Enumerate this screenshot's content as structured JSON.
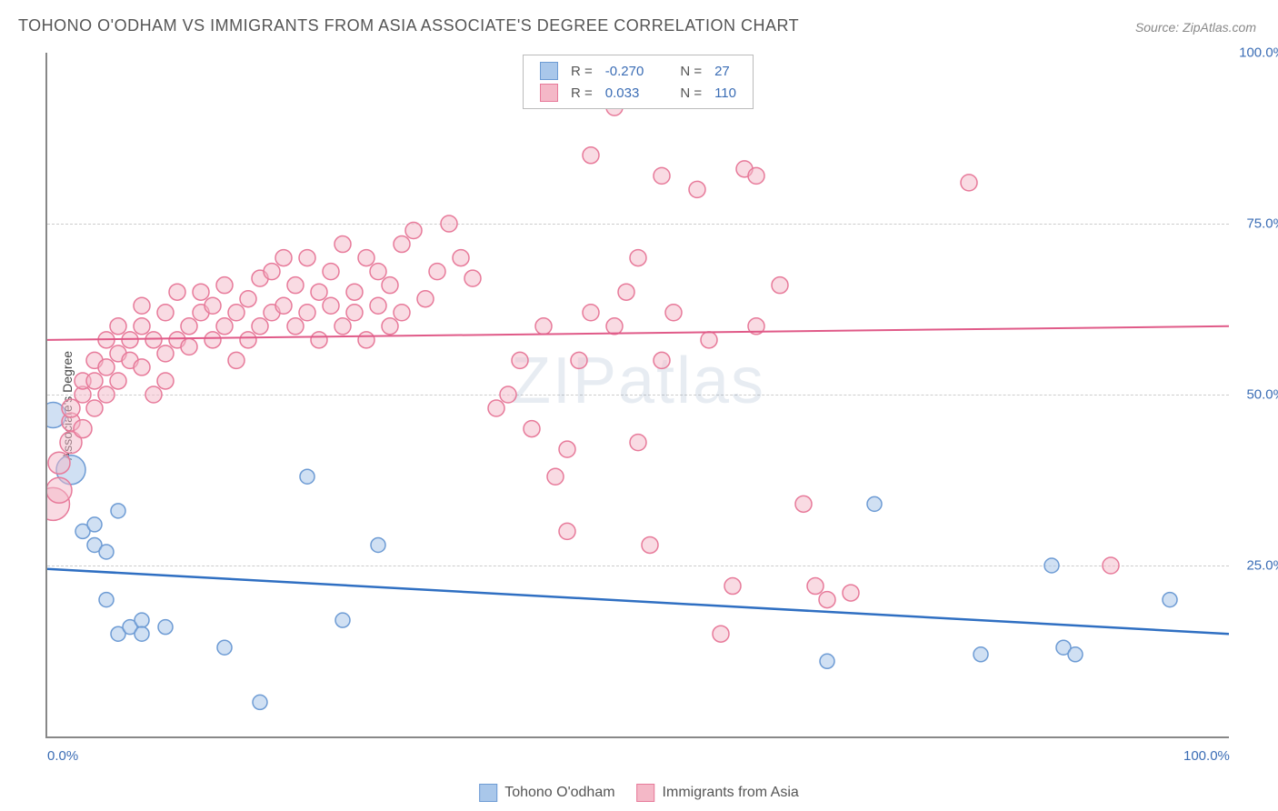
{
  "title": "TOHONO O'ODHAM VS IMMIGRANTS FROM ASIA ASSOCIATE'S DEGREE CORRELATION CHART",
  "source": "Source: ZipAtlas.com",
  "watermark": "ZIPatlas",
  "ylabel": "Associate's Degree",
  "chart": {
    "type": "scatter",
    "xlim": [
      0,
      100
    ],
    "ylim": [
      0,
      100
    ],
    "xtick_labels": [
      "0.0%",
      "100.0%"
    ],
    "xtick_positions": [
      0,
      100
    ],
    "ytick_labels": [
      "25.0%",
      "50.0%",
      "75.0%",
      "100.0%"
    ],
    "ytick_positions": [
      25,
      50,
      75,
      100
    ],
    "grid_positions": [
      25,
      50,
      75
    ],
    "background_color": "#ffffff",
    "grid_color": "#cccccc",
    "axis_color": "#888888",
    "tick_label_color": "#3b6db5",
    "series": [
      {
        "name": "Tohono O'odham",
        "marker_fill": "#a9c7ea",
        "marker_stroke": "#6d9bd4",
        "marker_opacity": 0.55,
        "line_color": "#2f6fc2",
        "line_width": 2.5,
        "R": "-0.270",
        "N": "27",
        "regression": {
          "y_at_x0": 24.5,
          "y_at_x100": 15.0
        },
        "points": [
          {
            "x": 0.5,
            "y": 47,
            "r": 14
          },
          {
            "x": 2,
            "y": 39,
            "r": 16
          },
          {
            "x": 3,
            "y": 30,
            "r": 8
          },
          {
            "x": 4,
            "y": 31,
            "r": 8
          },
          {
            "x": 4,
            "y": 28,
            "r": 8
          },
          {
            "x": 6,
            "y": 33,
            "r": 8
          },
          {
            "x": 5,
            "y": 27,
            "r": 8
          },
          {
            "x": 5,
            "y": 20,
            "r": 8
          },
          {
            "x": 6,
            "y": 15,
            "r": 8
          },
          {
            "x": 7,
            "y": 16,
            "r": 8
          },
          {
            "x": 8,
            "y": 17,
            "r": 8
          },
          {
            "x": 8,
            "y": 15,
            "r": 8
          },
          {
            "x": 10,
            "y": 16,
            "r": 8
          },
          {
            "x": 15,
            "y": 13,
            "r": 8
          },
          {
            "x": 18,
            "y": 5,
            "r": 8
          },
          {
            "x": 22,
            "y": 38,
            "r": 8
          },
          {
            "x": 25,
            "y": 17,
            "r": 8
          },
          {
            "x": 28,
            "y": 28,
            "r": 8
          },
          {
            "x": 66,
            "y": 11,
            "r": 8
          },
          {
            "x": 70,
            "y": 34,
            "r": 8
          },
          {
            "x": 79,
            "y": 12,
            "r": 8
          },
          {
            "x": 85,
            "y": 25,
            "r": 8
          },
          {
            "x": 86,
            "y": 13,
            "r": 8
          },
          {
            "x": 87,
            "y": 12,
            "r": 8
          },
          {
            "x": 95,
            "y": 20,
            "r": 8
          }
        ]
      },
      {
        "name": "Immigrants from Asia",
        "marker_fill": "#f4b8c7",
        "marker_stroke": "#e77a9a",
        "marker_opacity": 0.5,
        "line_color": "#e05a88",
        "line_width": 2.0,
        "R": "0.033",
        "N": "110",
        "regression": {
          "y_at_x0": 58.0,
          "y_at_x100": 60.0
        },
        "points": [
          {
            "x": 0.5,
            "y": 34,
            "r": 18
          },
          {
            "x": 1,
            "y": 36,
            "r": 14
          },
          {
            "x": 1,
            "y": 40,
            "r": 12
          },
          {
            "x": 2,
            "y": 43,
            "r": 12
          },
          {
            "x": 2,
            "y": 46,
            "r": 10
          },
          {
            "x": 2,
            "y": 48,
            "r": 10
          },
          {
            "x": 3,
            "y": 45,
            "r": 10
          },
          {
            "x": 3,
            "y": 50,
            "r": 9
          },
          {
            "x": 3,
            "y": 52,
            "r": 9
          },
          {
            "x": 4,
            "y": 48,
            "r": 9
          },
          {
            "x": 4,
            "y": 52,
            "r": 9
          },
          {
            "x": 4,
            "y": 55,
            "r": 9
          },
          {
            "x": 5,
            "y": 50,
            "r": 9
          },
          {
            "x": 5,
            "y": 54,
            "r": 9
          },
          {
            "x": 5,
            "y": 58,
            "r": 9
          },
          {
            "x": 6,
            "y": 52,
            "r": 9
          },
          {
            "x": 6,
            "y": 56,
            "r": 9
          },
          {
            "x": 6,
            "y": 60,
            "r": 9
          },
          {
            "x": 7,
            "y": 55,
            "r": 9
          },
          {
            "x": 7,
            "y": 58,
            "r": 9
          },
          {
            "x": 8,
            "y": 54,
            "r": 9
          },
          {
            "x": 8,
            "y": 60,
            "r": 9
          },
          {
            "x": 8,
            "y": 63,
            "r": 9
          },
          {
            "x": 9,
            "y": 50,
            "r": 9
          },
          {
            "x": 9,
            "y": 58,
            "r": 9
          },
          {
            "x": 10,
            "y": 52,
            "r": 9
          },
          {
            "x": 10,
            "y": 56,
            "r": 9
          },
          {
            "x": 10,
            "y": 62,
            "r": 9
          },
          {
            "x": 11,
            "y": 58,
            "r": 9
          },
          {
            "x": 11,
            "y": 65,
            "r": 9
          },
          {
            "x": 12,
            "y": 57,
            "r": 9
          },
          {
            "x": 12,
            "y": 60,
            "r": 9
          },
          {
            "x": 13,
            "y": 62,
            "r": 9
          },
          {
            "x": 13,
            "y": 65,
            "r": 9
          },
          {
            "x": 14,
            "y": 58,
            "r": 9
          },
          {
            "x": 14,
            "y": 63,
            "r": 9
          },
          {
            "x": 15,
            "y": 60,
            "r": 9
          },
          {
            "x": 15,
            "y": 66,
            "r": 9
          },
          {
            "x": 16,
            "y": 55,
            "r": 9
          },
          {
            "x": 16,
            "y": 62,
            "r": 9
          },
          {
            "x": 17,
            "y": 58,
            "r": 9
          },
          {
            "x": 17,
            "y": 64,
            "r": 9
          },
          {
            "x": 18,
            "y": 60,
            "r": 9
          },
          {
            "x": 18,
            "y": 67,
            "r": 9
          },
          {
            "x": 19,
            "y": 62,
            "r": 9
          },
          {
            "x": 19,
            "y": 68,
            "r": 9
          },
          {
            "x": 20,
            "y": 63,
            "r": 9
          },
          {
            "x": 20,
            "y": 70,
            "r": 9
          },
          {
            "x": 21,
            "y": 60,
            "r": 9
          },
          {
            "x": 21,
            "y": 66,
            "r": 9
          },
          {
            "x": 22,
            "y": 62,
            "r": 9
          },
          {
            "x": 22,
            "y": 70,
            "r": 9
          },
          {
            "x": 23,
            "y": 58,
            "r": 9
          },
          {
            "x": 23,
            "y": 65,
            "r": 9
          },
          {
            "x": 24,
            "y": 63,
            "r": 9
          },
          {
            "x": 24,
            "y": 68,
            "r": 9
          },
          {
            "x": 25,
            "y": 60,
            "r": 9
          },
          {
            "x": 25,
            "y": 72,
            "r": 9
          },
          {
            "x": 26,
            "y": 62,
            "r": 9
          },
          {
            "x": 26,
            "y": 65,
            "r": 9
          },
          {
            "x": 27,
            "y": 58,
            "r": 9
          },
          {
            "x": 27,
            "y": 70,
            "r": 9
          },
          {
            "x": 28,
            "y": 63,
            "r": 9
          },
          {
            "x": 28,
            "y": 68,
            "r": 9
          },
          {
            "x": 29,
            "y": 60,
            "r": 9
          },
          {
            "x": 29,
            "y": 66,
            "r": 9
          },
          {
            "x": 30,
            "y": 62,
            "r": 9
          },
          {
            "x": 30,
            "y": 72,
            "r": 9
          },
          {
            "x": 31,
            "y": 74,
            "r": 9
          },
          {
            "x": 32,
            "y": 64,
            "r": 9
          },
          {
            "x": 33,
            "y": 68,
            "r": 9
          },
          {
            "x": 34,
            "y": 75,
            "r": 9
          },
          {
            "x": 35,
            "y": 70,
            "r": 9
          },
          {
            "x": 36,
            "y": 67,
            "r": 9
          },
          {
            "x": 38,
            "y": 48,
            "r": 9
          },
          {
            "x": 39,
            "y": 50,
            "r": 9
          },
          {
            "x": 40,
            "y": 55,
            "r": 9
          },
          {
            "x": 41,
            "y": 45,
            "r": 9
          },
          {
            "x": 42,
            "y": 60,
            "r": 9
          },
          {
            "x": 43,
            "y": 38,
            "r": 9
          },
          {
            "x": 44,
            "y": 42,
            "r": 9
          },
          {
            "x": 44,
            "y": 30,
            "r": 9
          },
          {
            "x": 45,
            "y": 55,
            "r": 9
          },
          {
            "x": 46,
            "y": 62,
            "r": 9
          },
          {
            "x": 46,
            "y": 85,
            "r": 9
          },
          {
            "x": 48,
            "y": 92,
            "r": 9
          },
          {
            "x": 48,
            "y": 60,
            "r": 9
          },
          {
            "x": 49,
            "y": 65,
            "r": 9
          },
          {
            "x": 50,
            "y": 70,
            "r": 9
          },
          {
            "x": 50,
            "y": 43,
            "r": 9
          },
          {
            "x": 51,
            "y": 28,
            "r": 9
          },
          {
            "x": 52,
            "y": 55,
            "r": 9
          },
          {
            "x": 52,
            "y": 82,
            "r": 9
          },
          {
            "x": 53,
            "y": 62,
            "r": 9
          },
          {
            "x": 55,
            "y": 80,
            "r": 9
          },
          {
            "x": 56,
            "y": 58,
            "r": 9
          },
          {
            "x": 57,
            "y": 15,
            "r": 9
          },
          {
            "x": 58,
            "y": 22,
            "r": 9
          },
          {
            "x": 59,
            "y": 83,
            "r": 9
          },
          {
            "x": 60,
            "y": 60,
            "r": 9
          },
          {
            "x": 60,
            "y": 82,
            "r": 9
          },
          {
            "x": 62,
            "y": 66,
            "r": 9
          },
          {
            "x": 64,
            "y": 34,
            "r": 9
          },
          {
            "x": 65,
            "y": 22,
            "r": 9
          },
          {
            "x": 66,
            "y": 20,
            "r": 9
          },
          {
            "x": 68,
            "y": 21,
            "r": 9
          },
          {
            "x": 78,
            "y": 81,
            "r": 9
          },
          {
            "x": 90,
            "y": 25,
            "r": 9
          }
        ]
      }
    ]
  },
  "legend_top": {
    "rows": [
      {
        "swatch_fill": "#a9c7ea",
        "swatch_stroke": "#6d9bd4",
        "R_label": "R =",
        "R_val": "-0.270",
        "N_label": "N =",
        "N_val": "27"
      },
      {
        "swatch_fill": "#f4b8c7",
        "swatch_stroke": "#e77a9a",
        "R_label": "R =",
        "R_val": "0.033",
        "N_label": "N =",
        "N_val": "110"
      }
    ]
  },
  "legend_bottom": {
    "items": [
      {
        "swatch_fill": "#a9c7ea",
        "swatch_stroke": "#6d9bd4",
        "label": "Tohono O'odham"
      },
      {
        "swatch_fill": "#f4b8c7",
        "swatch_stroke": "#e77a9a",
        "label": "Immigrants from Asia"
      }
    ]
  }
}
